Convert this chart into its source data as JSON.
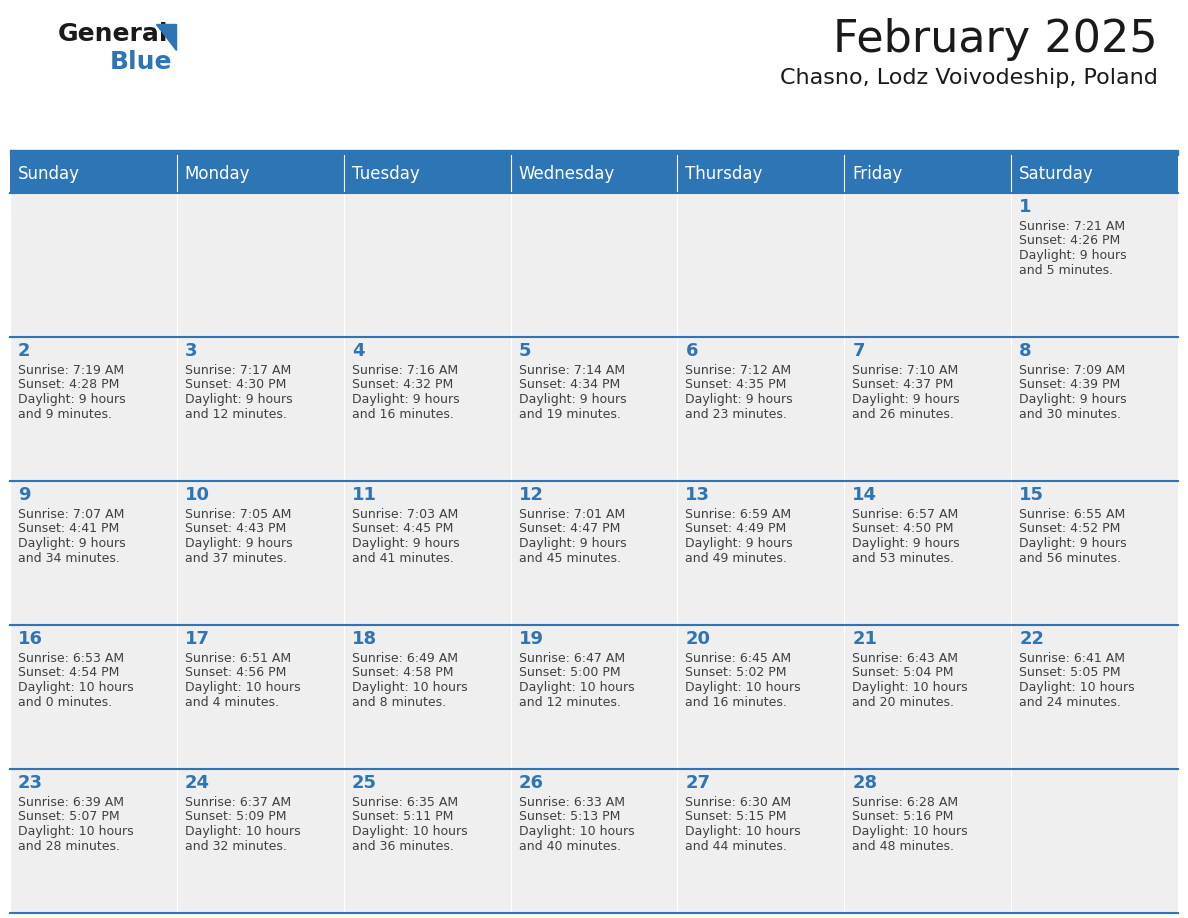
{
  "title": "February 2025",
  "subtitle": "Chasno, Lodz Voivodeship, Poland",
  "days_of_week": [
    "Sunday",
    "Monday",
    "Tuesday",
    "Wednesday",
    "Thursday",
    "Friday",
    "Saturday"
  ],
  "header_bg_color": "#2E75B6",
  "header_text_color": "#FFFFFF",
  "cell_bg_color": "#EFEFEF",
  "border_color": "#2E75B6",
  "day_num_color": "#2E75B6",
  "text_color": "#404040",
  "calendar": [
    [
      null,
      null,
      null,
      null,
      null,
      null,
      1
    ],
    [
      2,
      3,
      4,
      5,
      6,
      7,
      8
    ],
    [
      9,
      10,
      11,
      12,
      13,
      14,
      15
    ],
    [
      16,
      17,
      18,
      19,
      20,
      21,
      22
    ],
    [
      23,
      24,
      25,
      26,
      27,
      28,
      null
    ]
  ],
  "day_data": {
    "1": {
      "sunrise": "7:21 AM",
      "sunset": "4:26 PM",
      "daylight": "9 hours and 5 minutes."
    },
    "2": {
      "sunrise": "7:19 AM",
      "sunset": "4:28 PM",
      "daylight": "9 hours and 9 minutes."
    },
    "3": {
      "sunrise": "7:17 AM",
      "sunset": "4:30 PM",
      "daylight": "9 hours and 12 minutes."
    },
    "4": {
      "sunrise": "7:16 AM",
      "sunset": "4:32 PM",
      "daylight": "9 hours and 16 minutes."
    },
    "5": {
      "sunrise": "7:14 AM",
      "sunset": "4:34 PM",
      "daylight": "9 hours and 19 minutes."
    },
    "6": {
      "sunrise": "7:12 AM",
      "sunset": "4:35 PM",
      "daylight": "9 hours and 23 minutes."
    },
    "7": {
      "sunrise": "7:10 AM",
      "sunset": "4:37 PM",
      "daylight": "9 hours and 26 minutes."
    },
    "8": {
      "sunrise": "7:09 AM",
      "sunset": "4:39 PM",
      "daylight": "9 hours and 30 minutes."
    },
    "9": {
      "sunrise": "7:07 AM",
      "sunset": "4:41 PM",
      "daylight": "9 hours and 34 minutes."
    },
    "10": {
      "sunrise": "7:05 AM",
      "sunset": "4:43 PM",
      "daylight": "9 hours and 37 minutes."
    },
    "11": {
      "sunrise": "7:03 AM",
      "sunset": "4:45 PM",
      "daylight": "9 hours and 41 minutes."
    },
    "12": {
      "sunrise": "7:01 AM",
      "sunset": "4:47 PM",
      "daylight": "9 hours and 45 minutes."
    },
    "13": {
      "sunrise": "6:59 AM",
      "sunset": "4:49 PM",
      "daylight": "9 hours and 49 minutes."
    },
    "14": {
      "sunrise": "6:57 AM",
      "sunset": "4:50 PM",
      "daylight": "9 hours and 53 minutes."
    },
    "15": {
      "sunrise": "6:55 AM",
      "sunset": "4:52 PM",
      "daylight": "9 hours and 56 minutes."
    },
    "16": {
      "sunrise": "6:53 AM",
      "sunset": "4:54 PM",
      "daylight": "10 hours and 0 minutes."
    },
    "17": {
      "sunrise": "6:51 AM",
      "sunset": "4:56 PM",
      "daylight": "10 hours and 4 minutes."
    },
    "18": {
      "sunrise": "6:49 AM",
      "sunset": "4:58 PM",
      "daylight": "10 hours and 8 minutes."
    },
    "19": {
      "sunrise": "6:47 AM",
      "sunset": "5:00 PM",
      "daylight": "10 hours and 12 minutes."
    },
    "20": {
      "sunrise": "6:45 AM",
      "sunset": "5:02 PM",
      "daylight": "10 hours and 16 minutes."
    },
    "21": {
      "sunrise": "6:43 AM",
      "sunset": "5:04 PM",
      "daylight": "10 hours and 20 minutes."
    },
    "22": {
      "sunrise": "6:41 AM",
      "sunset": "5:05 PM",
      "daylight": "10 hours and 24 minutes."
    },
    "23": {
      "sunrise": "6:39 AM",
      "sunset": "5:07 PM",
      "daylight": "10 hours and 28 minutes."
    },
    "24": {
      "sunrise": "6:37 AM",
      "sunset": "5:09 PM",
      "daylight": "10 hours and 32 minutes."
    },
    "25": {
      "sunrise": "6:35 AM",
      "sunset": "5:11 PM",
      "daylight": "10 hours and 36 minutes."
    },
    "26": {
      "sunrise": "6:33 AM",
      "sunset": "5:13 PM",
      "daylight": "10 hours and 40 minutes."
    },
    "27": {
      "sunrise": "6:30 AM",
      "sunset": "5:15 PM",
      "daylight": "10 hours and 44 minutes."
    },
    "28": {
      "sunrise": "6:28 AM",
      "sunset": "5:16 PM",
      "daylight": "10 hours and 48 minutes."
    }
  },
  "logo_general_color": "#1a1a1a",
  "logo_blue_color": "#2E75B6",
  "logo_triangle_color": "#2E75B6",
  "title_fontsize": 32,
  "subtitle_fontsize": 16,
  "header_fontsize": 12,
  "daynum_fontsize": 13,
  "cell_fontsize": 9
}
